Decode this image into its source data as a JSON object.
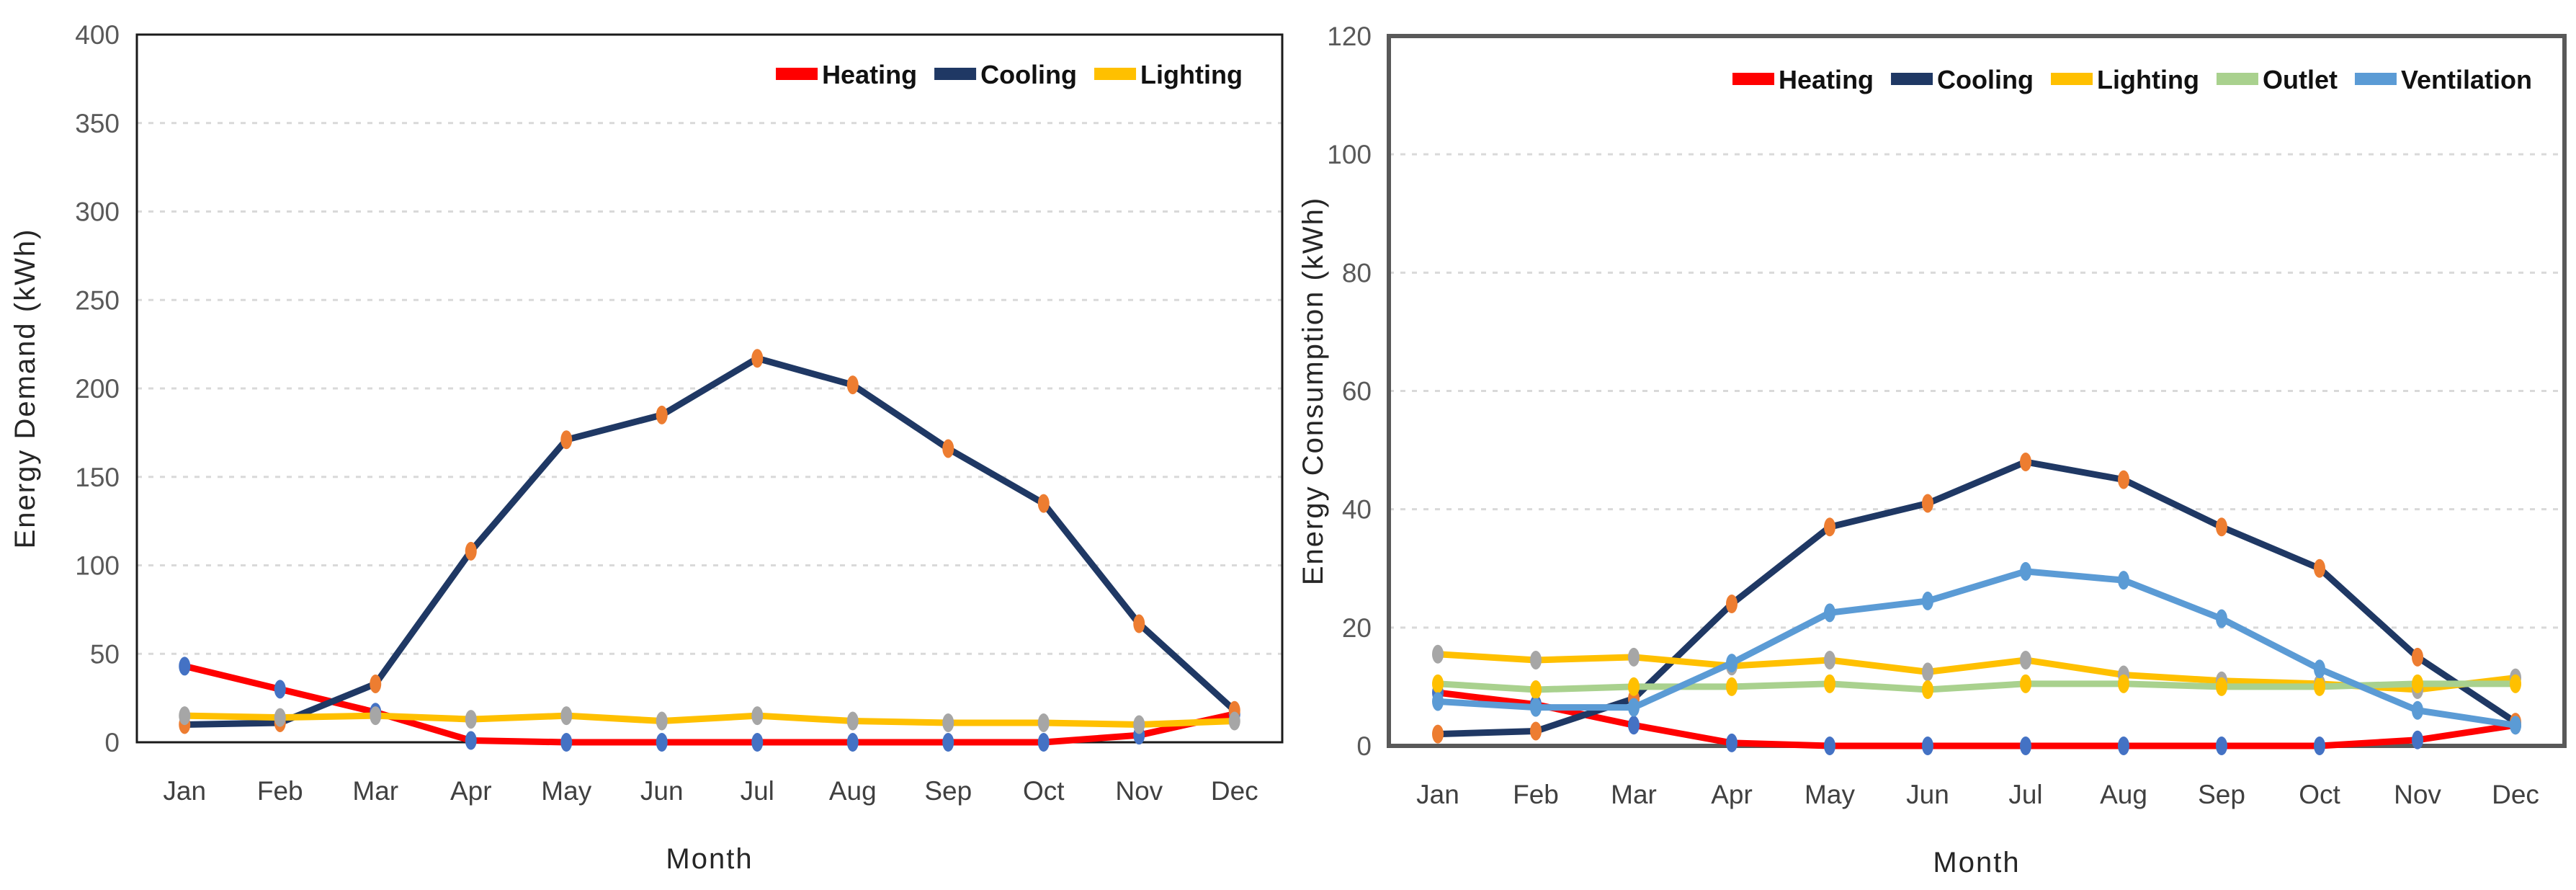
{
  "page": {
    "background": "#ffffff",
    "description_left_chart": "Monthly energy demand line chart",
    "description_right_chart": "Monthly energy consumption line chart"
  },
  "chart_data": [
    {
      "type": "line",
      "title": "",
      "xlabel": "Month",
      "ylabel": "Energy Demand (kWh)",
      "ylim": [
        0,
        400
      ],
      "y_ticks": [
        0,
        50,
        100,
        150,
        200,
        250,
        300,
        350,
        400
      ],
      "grid": "horizontal-dashed",
      "grid_color": "#d9d9d9",
      "legend_position": "top-right-inside",
      "categories": [
        "Jan",
        "Feb",
        "Mar",
        "Apr",
        "May",
        "Jun",
        "Jul",
        "Aug",
        "Sep",
        "Oct",
        "Nov",
        "Dec"
      ],
      "series": [
        {
          "name": "Heating",
          "color": "#ff0000",
          "marker_color": "#4472c4",
          "values": [
            43,
            30,
            17,
            1,
            0,
            0,
            0,
            0,
            0,
            0,
            4,
            16
          ]
        },
        {
          "name": "Cooling",
          "color": "#1f3864",
          "marker_color": "#ed7d31",
          "values": [
            10,
            11,
            33,
            108,
            171,
            185,
            217,
            202,
            166,
            135,
            67,
            18
          ]
        },
        {
          "name": "Lighting",
          "color": "#ffc000",
          "marker_color": "#a6a6a6",
          "values": [
            15,
            14,
            15,
            13,
            15,
            12,
            15,
            12,
            11,
            11,
            10,
            12
          ]
        }
      ]
    },
    {
      "type": "line",
      "title": "",
      "xlabel": "Month",
      "ylabel": "Energy Consumption (kWh)",
      "ylim": [
        0,
        120
      ],
      "y_ticks": [
        0,
        20,
        40,
        60,
        80,
        100,
        120
      ],
      "grid": "horizontal-dashed",
      "grid_color": "#d9d9d9",
      "legend_position": "top-right-inside",
      "categories": [
        "Jan",
        "Feb",
        "Mar",
        "Apr",
        "May",
        "Jun",
        "Jul",
        "Aug",
        "Sep",
        "Oct",
        "Nov",
        "Dec"
      ],
      "series": [
        {
          "name": "Heating",
          "color": "#ff0000",
          "marker_color": "#4472c4",
          "values": [
            9,
            7,
            3.5,
            0.5,
            0,
            0,
            0,
            0,
            0,
            0,
            1,
            3.5
          ]
        },
        {
          "name": "Cooling",
          "color": "#1f3864",
          "marker_color": "#ed7d31",
          "values": [
            2,
            2.5,
            8,
            24,
            37,
            41,
            48,
            45,
            37,
            30,
            15,
            4
          ]
        },
        {
          "name": "Lighting",
          "color": "#ffc000",
          "marker_color": "#a6a6a6",
          "values": [
            15.5,
            14.5,
            15,
            13.5,
            14.5,
            12.5,
            14.5,
            12,
            11,
            10.5,
            9.5,
            11.5
          ]
        },
        {
          "name": "Outlet",
          "color": "#a9d18e",
          "marker_color": "#ffc000",
          "values": [
            10.5,
            9.5,
            10,
            10,
            10.5,
            9.5,
            10.5,
            10.5,
            10,
            10,
            10.5,
            10.5
          ]
        },
        {
          "name": "Ventilation",
          "color": "#5b9bd5",
          "marker_color": "#5b9bd5",
          "values": [
            7.5,
            6.5,
            6.5,
            14,
            22.5,
            24.5,
            29.5,
            28,
            21.5,
            13,
            6,
            3.5
          ]
        }
      ]
    }
  ]
}
